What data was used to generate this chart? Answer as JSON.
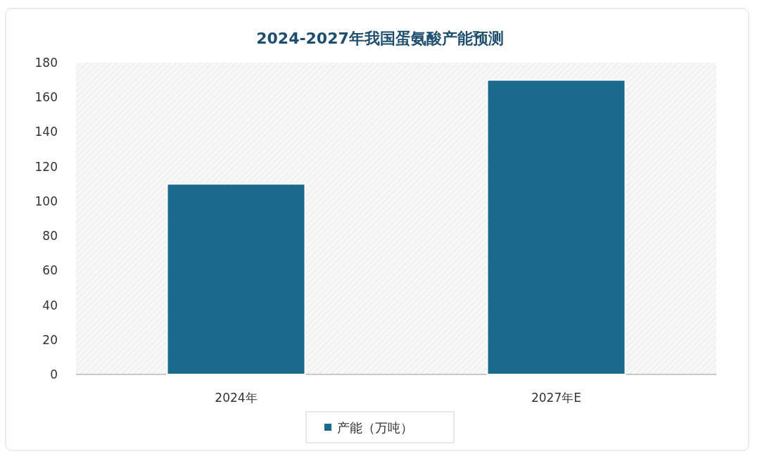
{
  "chart_data": {
    "type": "bar",
    "title": "2024-2027年我国蛋氨酸产能预测",
    "categories": [
      "2024年",
      "2027年E"
    ],
    "series": [
      {
        "name": "产能（万吨）",
        "color": "#1b6a8e",
        "values": [
          110,
          170
        ]
      }
    ],
    "ylim": [
      0,
      180
    ],
    "yticks": [
      0,
      20,
      40,
      60,
      80,
      100,
      120,
      140,
      160,
      180
    ],
    "legend": "bottom"
  }
}
